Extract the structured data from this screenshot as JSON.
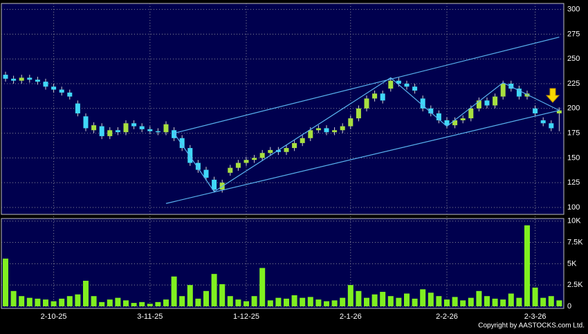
{
  "chart_data": [
    {
      "type": "candlestick",
      "categories": [
        null,
        null,
        null,
        null,
        null,
        null,
        "2-10-25",
        null,
        null,
        null,
        null,
        null,
        null,
        null,
        null,
        null,
        null,
        null,
        "3-11-25",
        null,
        null,
        null,
        null,
        null,
        null,
        null,
        null,
        null,
        null,
        null,
        "1-12-25",
        null,
        null,
        null,
        null,
        null,
        null,
        null,
        null,
        null,
        null,
        null,
        null,
        "2-1-26",
        null,
        null,
        null,
        null,
        null,
        null,
        null,
        null,
        null,
        null,
        null,
        "2-2-26",
        null,
        null,
        null,
        null,
        null,
        null,
        null,
        null,
        null,
        null,
        "2-3-26",
        null,
        null,
        null
      ],
      "open": [
        234,
        230,
        228,
        231,
        229,
        227,
        222,
        219,
        216,
        205,
        192,
        178,
        182,
        172,
        178,
        176,
        185,
        182,
        179,
        177,
        176,
        178,
        170,
        160,
        145,
        138,
        128,
        118,
        135,
        140,
        145,
        148,
        150,
        155,
        158,
        156,
        160,
        165,
        170,
        178,
        180,
        176,
        178,
        182,
        190,
        200,
        210,
        215,
        220,
        228,
        225,
        222,
        210,
        200,
        195,
        188,
        183,
        188,
        190,
        200,
        208,
        203,
        212,
        225,
        220,
        212,
        200,
        188,
        185,
        195
      ],
      "high": [
        237,
        233,
        234,
        234,
        232,
        230,
        225,
        222,
        219,
        208,
        195,
        186,
        185,
        181,
        181,
        188,
        188,
        185,
        182,
        180,
        187,
        181,
        173,
        163,
        148,
        141,
        131,
        128,
        143,
        148,
        151,
        153,
        158,
        161,
        161,
        163,
        168,
        173,
        181,
        183,
        183,
        181,
        185,
        193,
        203,
        213,
        218,
        218,
        231,
        231,
        228,
        225,
        213,
        203,
        198,
        191,
        191,
        193,
        203,
        211,
        211,
        215,
        228,
        228,
        223,
        218,
        203,
        191,
        188,
        201
      ],
      "low": [
        227,
        225,
        225,
        226,
        224,
        219,
        216,
        213,
        209,
        192,
        177,
        175,
        169,
        169,
        173,
        173,
        179,
        176,
        174,
        173,
        173,
        167,
        157,
        142,
        135,
        127,
        115,
        115,
        132,
        137,
        142,
        145,
        147,
        152,
        153,
        153,
        157,
        162,
        167,
        175,
        173,
        173,
        175,
        179,
        187,
        197,
        207,
        205,
        217,
        222,
        219,
        215,
        197,
        192,
        185,
        180,
        180,
        185,
        187,
        197,
        200,
        200,
        209,
        217,
        209,
        209,
        192,
        182,
        177,
        177
      ],
      "close": [
        230,
        228,
        231,
        229,
        227,
        222,
        219,
        216,
        212,
        195,
        180,
        183,
        172,
        178,
        176,
        185,
        182,
        179,
        177,
        176,
        184,
        170,
        160,
        145,
        138,
        130,
        118,
        125,
        140,
        145,
        148,
        150,
        155,
        158,
        156,
        160,
        165,
        170,
        178,
        180,
        176,
        178,
        182,
        190,
        200,
        210,
        215,
        208,
        228,
        225,
        222,
        218,
        200,
        195,
        188,
        183,
        188,
        190,
        200,
        208,
        203,
        212,
        225,
        220,
        212,
        215,
        195,
        185,
        180,
        198
      ],
      "up_color": "#a8e040",
      "down_color": "#40d8f8",
      "line_color": "#5ab4f0",
      "ylim": [
        93,
        306
      ],
      "yticks": [
        100,
        125,
        150,
        175,
        200,
        225,
        250,
        275,
        300
      ],
      "grid": true,
      "trendlines": [
        {
          "x": [
            21,
            69
          ],
          "y": [
            175,
            272
          ]
        },
        {
          "x": [
            20,
            69
          ],
          "y": [
            104,
            198
          ]
        },
        {
          "x": [
            21,
            26,
            48,
            55,
            62,
            69
          ],
          "y": [
            175,
            116,
            231,
            182,
            226,
            198
          ]
        }
      ]
    },
    {
      "type": "bar",
      "color": "#80f020",
      "values": [
        5600,
        1800,
        1200,
        1000,
        900,
        800,
        600,
        900,
        1200,
        1400,
        3000,
        1200,
        500,
        800,
        1000,
        700,
        400,
        500,
        300,
        500,
        800,
        3500,
        1200,
        2500,
        900,
        1800,
        3800,
        2600,
        1200,
        800,
        600,
        1200,
        4500,
        700,
        1000,
        900,
        1300,
        1000,
        1100,
        800,
        600,
        700,
        1000,
        2500,
        1800,
        1000,
        1400,
        1700,
        1200,
        1000,
        1500,
        900,
        2000,
        1600,
        1200,
        800,
        1100,
        700,
        1000,
        1800,
        1200,
        900,
        800,
        1500,
        1000,
        9500,
        2200,
        1000,
        1200,
        700
      ],
      "ylim": [
        0,
        10300
      ],
      "yticks": [
        0,
        {
          "value": 2500,
          "label": "2.5K"
        },
        {
          "value": 5000,
          "label": "5K"
        },
        {
          "value": 7500,
          "label": "7.5K"
        },
        {
          "value": 10000,
          "label": "10K"
        }
      ],
      "grid": true
    }
  ],
  "footer": "Copyright by AASTOCKS.com Ltd."
}
